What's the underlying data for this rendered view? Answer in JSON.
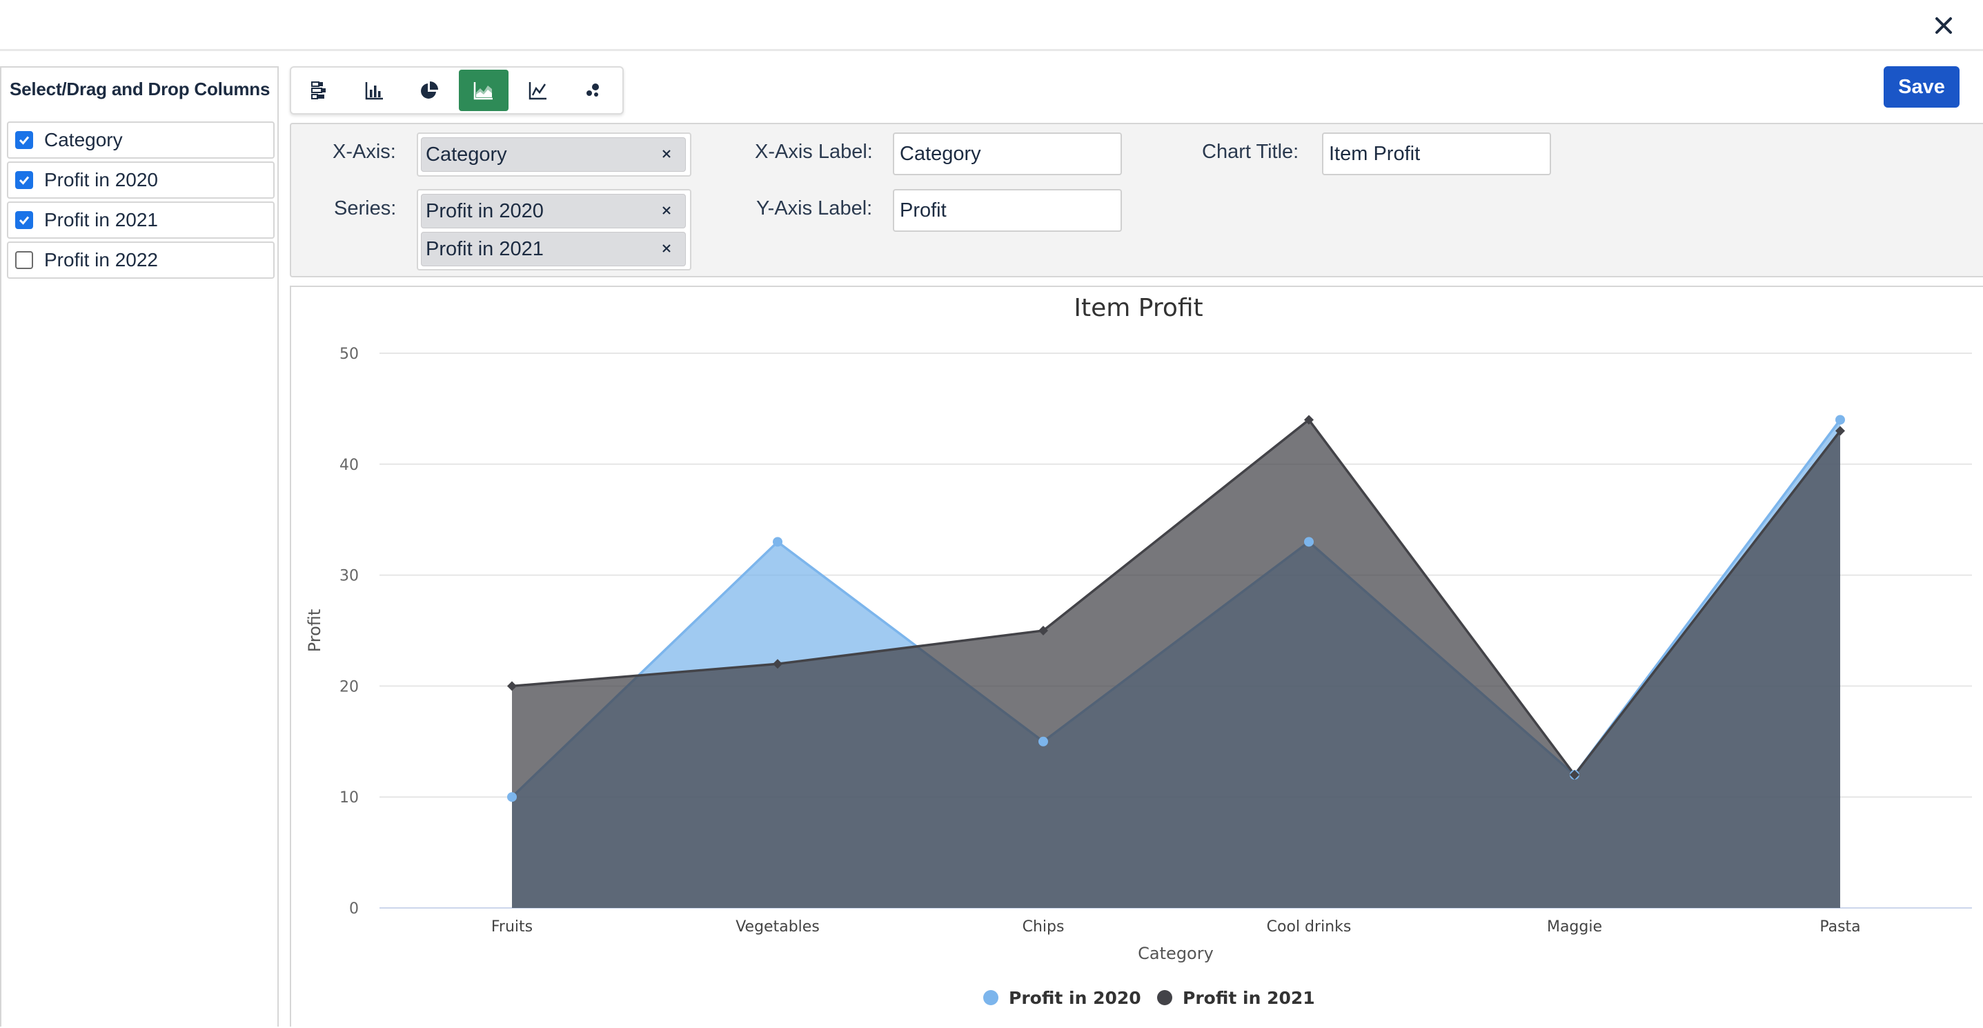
{
  "columns_panel": {
    "title": "Select/Drag and Drop Columns",
    "items": [
      {
        "label": "Category",
        "checked": true
      },
      {
        "label": "Profit in 2020",
        "checked": true
      },
      {
        "label": "Profit in 2021",
        "checked": true
      },
      {
        "label": "Profit in 2022",
        "checked": false
      }
    ]
  },
  "toolbar": {
    "chart_types": [
      "stacked-bar-icon",
      "bar-chart-icon",
      "pie-chart-icon",
      "area-chart-icon",
      "line-chart-icon",
      "scatter-chart-icon"
    ],
    "active": "area-chart-icon",
    "active_color": "#2e8b57"
  },
  "save_label": "Save",
  "config": {
    "x_axis_label": "X-Axis:",
    "x_axis_value": "Category",
    "series_label": "Series:",
    "series_values": [
      "Profit in 2020",
      "Profit in 2021"
    ],
    "x_axis_title_label": "X-Axis Label:",
    "x_axis_title_value": "Category",
    "y_axis_title_label": "Y-Axis Label:",
    "y_axis_title_value": "Profit",
    "chart_title_label": "Chart Title:",
    "chart_title_value": "Item Profit"
  },
  "chart_data": {
    "type": "area",
    "title": "Item Profit",
    "xlabel": "Category",
    "ylabel": "Profit",
    "categories": [
      "Fruits",
      "Vegetables",
      "Chips",
      "Cool drinks",
      "Maggie",
      "Pasta"
    ],
    "ylim": [
      0,
      50
    ],
    "yticks": [
      0,
      10,
      20,
      30,
      40,
      50
    ],
    "grid": true,
    "legend_position": "bottom-center",
    "series": [
      {
        "name": "Profit in 2020",
        "values": [
          10,
          33,
          15,
          33,
          12,
          44
        ],
        "color": "#7cb5ec",
        "marker": "circle"
      },
      {
        "name": "Profit in 2021",
        "values": [
          20,
          22,
          25,
          44,
          12,
          43
        ],
        "color": "#434348",
        "marker": "diamond"
      }
    ]
  }
}
